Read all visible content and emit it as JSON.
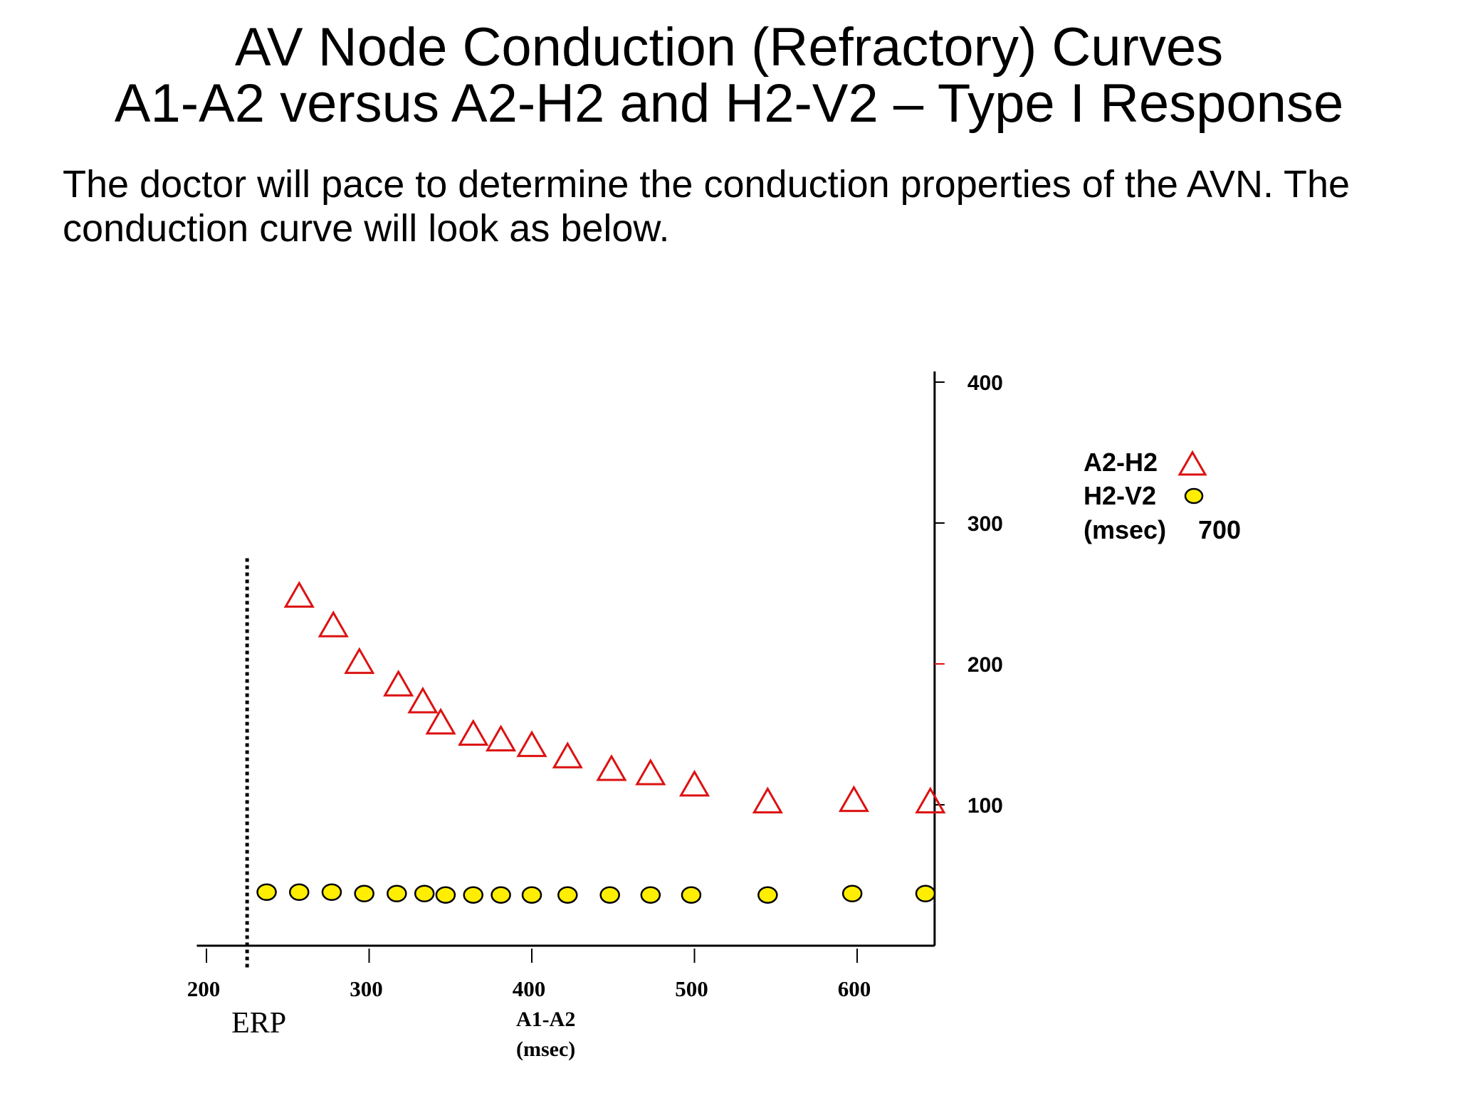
{
  "slide": {
    "title_line1": "AV Node Conduction (Refractory) Curves",
    "title_line2": "A1-A2 versus A2-H2 and H2-V2 – Type I Response",
    "subtitle": "The doctor will pace to determine the conduction properties of the AVN. The conduction curve will look as below."
  },
  "chart_data": {
    "type": "scatter",
    "x_ticks": [
      200,
      300,
      400,
      500,
      600
    ],
    "y_ticks": [
      100,
      200,
      300,
      400
    ],
    "xlim": [
      170,
      645
    ],
    "ylim": [
      0,
      400
    ],
    "xlabel_line1": "A1-A2",
    "xlabel_line2": "(msec)",
    "erp": {
      "x": 225,
      "label": "ERP"
    },
    "legend": {
      "line1": "A2-H2",
      "line2": "H2-V2",
      "line3_unit": "(msec)",
      "line3_value": "700",
      "position": "right"
    },
    "series": [
      {
        "name": "A2-H2",
        "marker": "triangle",
        "color": "#dd1111",
        "x": [
          257,
          278,
          294,
          318,
          333,
          344,
          364,
          381,
          400,
          422,
          449,
          473,
          500,
          545,
          598,
          645
        ],
        "y": [
          247,
          226,
          200,
          184,
          172,
          157,
          149,
          145,
          141,
          133,
          124,
          121,
          113,
          101,
          102,
          101
        ]
      },
      {
        "name": "H2-V2",
        "marker": "circle",
        "color": "#ffee00",
        "stroke": "#000000",
        "x": [
          237,
          257,
          277,
          297,
          317,
          334,
          347,
          364,
          381,
          400,
          422,
          448,
          473,
          498,
          545,
          597,
          642
        ],
        "y": [
          38,
          38,
          38,
          37,
          37,
          37,
          36,
          36,
          36,
          36,
          36,
          36,
          36,
          36,
          36,
          37,
          37
        ]
      }
    ]
  }
}
